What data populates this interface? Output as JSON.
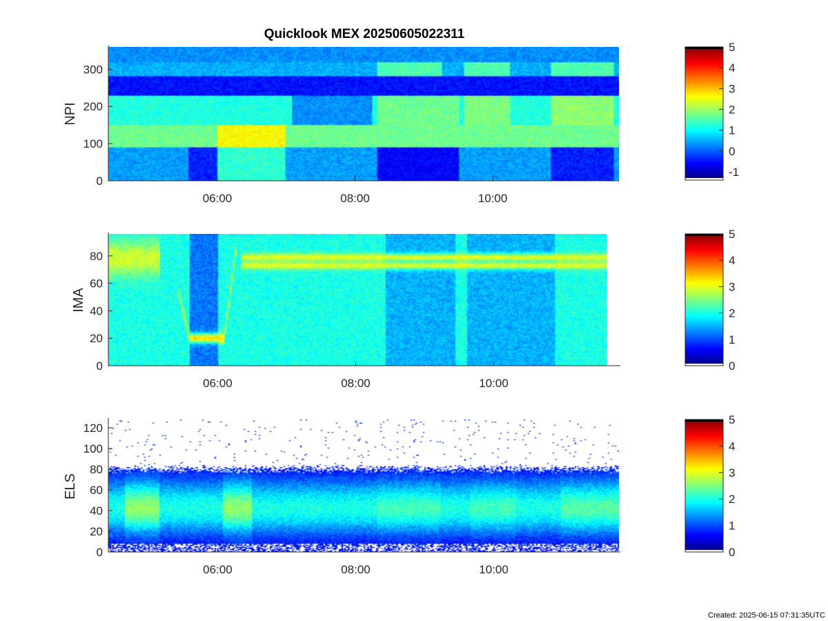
{
  "figure": {
    "title": "Quicklook MEX 20250605022311",
    "footer": "Created: 2025-06-15 07:31:35UTC"
  },
  "colormap": [
    "#00007f",
    "#0000ff",
    "#007fff",
    "#00ffff",
    "#7fff7f",
    "#ffff00",
    "#ff7f00",
    "#ff0000",
    "#7f0000"
  ],
  "chart_data": [
    {
      "type": "heatmap",
      "ylabel": "NPI",
      "x_time_range": [
        "04:25",
        "11:50"
      ],
      "xticks": [
        "06:00",
        "08:00",
        "10:00"
      ],
      "ylim": [
        0,
        360
      ],
      "yticks": [
        0,
        100,
        200,
        300
      ],
      "data_time_end": "11:50",
      "colorbar": {
        "range": [
          -1.4,
          5
        ],
        "ticks": [
          -1,
          0,
          1,
          2,
          3,
          4,
          5
        ]
      },
      "model": {
        "bands": [
          {
            "y": [
              0,
              90
            ],
            "level": 0.4
          },
          {
            "y": [
              90,
              150
            ],
            "level": 1.7
          },
          {
            "y": [
              150,
              230
            ],
            "level": 1.2
          },
          {
            "y": [
              230,
              280
            ],
            "level": -0.5
          },
          {
            "y": [
              280,
              320
            ],
            "level": 0.5
          },
          {
            "y": [
              320,
              360
            ],
            "level": 0.3
          }
        ],
        "events": [
          {
            "t": [
              "05:35",
              "06:00"
            ],
            "y": [
              0,
              90
            ],
            "shift": -0.8
          },
          {
            "t": [
              "06:00",
              "07:00"
            ],
            "y": [
              0,
              150
            ],
            "shift": 0.9
          },
          {
            "t": [
              "07:05",
              "08:15"
            ],
            "y": [
              150,
              230
            ],
            "shift": -0.9
          },
          {
            "t": [
              "08:20",
              "09:30"
            ],
            "y": [
              0,
              90
            ],
            "shift": -1.0
          },
          {
            "t": [
              "08:20",
              "09:30"
            ],
            "y": [
              150,
              230
            ],
            "shift": 0.5
          },
          {
            "t": [
              "08:20",
              "09:15"
            ],
            "y": [
              280,
              320
            ],
            "shift": 1.0
          },
          {
            "t": [
              "09:35",
              "10:15"
            ],
            "y": [
              280,
              320
            ],
            "shift": 1.0
          },
          {
            "t": [
              "09:35",
              "10:15"
            ],
            "y": [
              150,
              230
            ],
            "shift": 0.6
          },
          {
            "t": [
              "10:50",
              "11:45"
            ],
            "y": [
              280,
              320
            ],
            "shift": 1.0
          },
          {
            "t": [
              "10:50",
              "11:45"
            ],
            "y": [
              150,
              230
            ],
            "shift": 0.7
          },
          {
            "t": [
              "10:50",
              "11:45"
            ],
            "y": [
              0,
              90
            ],
            "shift": -0.8
          }
        ]
      }
    },
    {
      "type": "heatmap",
      "ylabel": "IMA",
      "x_time_range": [
        "04:25",
        "11:50"
      ],
      "xticks": [
        "06:00",
        "08:00",
        "10:00"
      ],
      "ylim": [
        0,
        96
      ],
      "yticks": [
        0,
        20,
        40,
        60,
        80
      ],
      "data_time_end": "11:35",
      "colorbar": {
        "range": [
          0,
          5
        ],
        "ticks": [
          0,
          1,
          2,
          3,
          4,
          5
        ]
      },
      "model": {
        "background": 2.0,
        "dark_intervals": [
          {
            "t": [
              "05:35",
              "06:00"
            ],
            "level": 1.2
          },
          {
            "t": [
              "08:25",
              "09:25"
            ],
            "level": 1.5
          },
          {
            "t": [
              "09:35",
              "10:50"
            ],
            "level": 1.5
          }
        ],
        "features": [
          {
            "name": "ion line 78",
            "t": [
              "06:20",
              "11:35"
            ],
            "y": 79,
            "width": 2.0,
            "level": 3.0
          },
          {
            "name": "ion line 72",
            "t": [
              "06:20",
              "11:35"
            ],
            "y": 73,
            "width": 2.0,
            "level": 3.0
          },
          {
            "name": "entry curve",
            "t": [
              "05:25",
              "05:35"
            ],
            "y_from": 55,
            "y_to": 20,
            "level": 2.8
          },
          {
            "name": "low energy",
            "t": [
              "05:35",
              "06:05"
            ],
            "y": 20,
            "width": 2.5,
            "level": 3.3
          },
          {
            "name": "exit curve",
            "t": [
              "06:05",
              "06:15"
            ],
            "y_from": 20,
            "y_to": 85,
            "level": 3.0
          },
          {
            "name": "early blob",
            "t": [
              "04:25",
              "05:10"
            ],
            "y": 78,
            "width": 9,
            "level": 2.9
          }
        ]
      }
    },
    {
      "type": "heatmap",
      "ylabel": "ELS",
      "x_time_range": [
        "04:25",
        "11:50"
      ],
      "xticks": [
        "06:00",
        "08:00",
        "10:00"
      ],
      "ylim": [
        0,
        128
      ],
      "yticks": [
        0,
        20,
        40,
        60,
        80,
        100,
        120
      ],
      "data_time_end": "11:50",
      "colorbar": {
        "range": [
          0,
          5
        ],
        "ticks": [
          0,
          1,
          2,
          3,
          4,
          5
        ]
      },
      "model": {
        "peak_y": 42,
        "peak_level": 2.0,
        "upper_edge_y": 80,
        "bright_intervals": [
          {
            "t": [
              "04:40",
              "05:10"
            ],
            "level": 2.6
          },
          {
            "t": [
              "06:05",
              "06:30"
            ],
            "level": 2.6
          },
          {
            "t": [
              "08:20",
              "09:15"
            ],
            "level": 2.2
          },
          {
            "t": [
              "09:40",
              "10:20"
            ],
            "level": 2.2
          },
          {
            "t": [
              "11:00",
              "11:50"
            ],
            "level": 2.3
          }
        ]
      }
    }
  ]
}
